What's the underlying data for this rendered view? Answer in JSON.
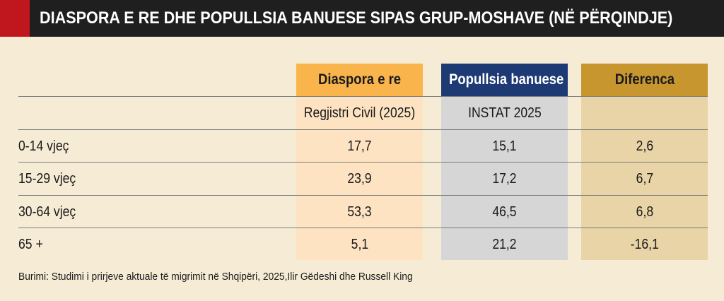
{
  "title": "DIASPORA E RE DHE POPULLSIA BANUESE SIPAS GRUP-MOSHAVE (NË PËRQINDJE)",
  "colors": {
    "title_bg": "#1f1f1f",
    "title_accent": "#c0161d",
    "diaspora": "#f9b54c",
    "populli": "#1e3a75",
    "diferenca": "#c7962f"
  },
  "columns": [
    {
      "header": "Diaspora e re",
      "subheader": "Regjistri Civil (2025)"
    },
    {
      "header": "Popullsia banuese",
      "subheader": "INSTAT 2025"
    },
    {
      "header": "Diferenca",
      "subheader": ""
    }
  ],
  "rows": [
    {
      "label": "0-14 vjeç",
      "values": [
        "17,7",
        "15,1",
        "2,6"
      ]
    },
    {
      "label": "15-29 vjeç",
      "values": [
        "23,9",
        "17,2",
        "6,7"
      ]
    },
    {
      "label": "30-64 vjeç",
      "values": [
        "53,3",
        "46,5",
        "6,8"
      ]
    },
    {
      "label": "65 +",
      "values": [
        "5,1",
        "21,2",
        "-16,1"
      ]
    }
  ],
  "source": "Burimi: Studimi i prirjeve aktuale të migrimit në Shqipëri, 2025,Ilir Gëdeshi dhe Russell King"
}
